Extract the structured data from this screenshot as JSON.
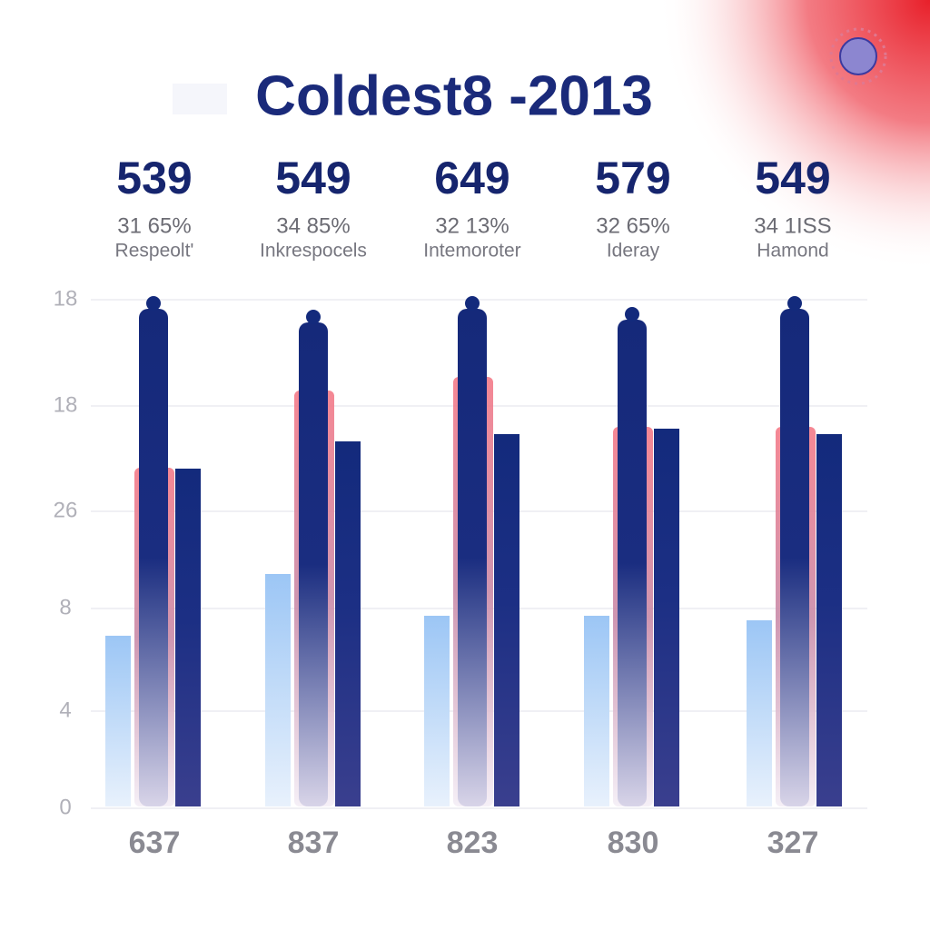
{
  "header": {
    "title": "Coldest8 -2013"
  },
  "columns": [
    {
      "value": "539",
      "change": "31 65%",
      "label": "Respeolt'",
      "footer": "637"
    },
    {
      "value": "549",
      "change": "34 85%",
      "label": "Inkrespocels",
      "footer": "837"
    },
    {
      "value": "649",
      "change": "32 13%",
      "label": "Intemoroter",
      "footer": "823"
    },
    {
      "value": "579",
      "change": "32 65%",
      "label": "Ideray",
      "footer": "830"
    },
    {
      "value": "549",
      "change": "34 1ISS",
      "label": "Hamond",
      "footer": "327"
    }
  ],
  "axis": {
    "labels": [
      "18",
      "18",
      "26",
      "8",
      "4",
      "0"
    ]
  }
}
